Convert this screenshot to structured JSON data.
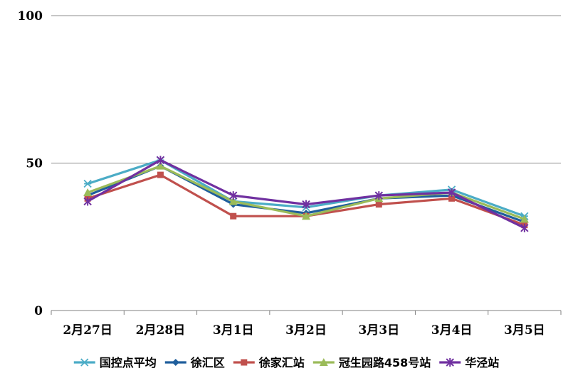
{
  "chart_data": {
    "type": "line",
    "categories": [
      "2月27日",
      "2月28日",
      "3月1日",
      "3月2日",
      "3月3日",
      "3月4日",
      "3月5日"
    ],
    "ylim": [
      0,
      100
    ],
    "yticks": [
      0,
      50,
      100
    ],
    "grid": true,
    "legend_position": "bottom",
    "series": [
      {
        "name": "国控点平均",
        "color": "#4BACC6",
        "marker": "asterisk",
        "values": [
          43,
          51,
          37,
          35,
          39,
          41,
          32
        ]
      },
      {
        "name": "徐汇区",
        "color": "#1F5E9C",
        "marker": "diamond",
        "values": [
          39,
          49,
          36,
          33,
          38,
          39,
          30
        ]
      },
      {
        "name": "徐家汇站",
        "color": "#C0504D",
        "marker": "square",
        "values": [
          38,
          46,
          32,
          32,
          36,
          38,
          29
        ]
      },
      {
        "name": "冠生园路458号站",
        "color": "#9BBB59",
        "marker": "triangle",
        "values": [
          40,
          49,
          37,
          32,
          38,
          40,
          31
        ]
      },
      {
        "name": "华泾站",
        "color": "#7030A0",
        "marker": "star",
        "values": [
          37,
          51,
          39,
          36,
          39,
          40,
          28
        ]
      }
    ]
  }
}
